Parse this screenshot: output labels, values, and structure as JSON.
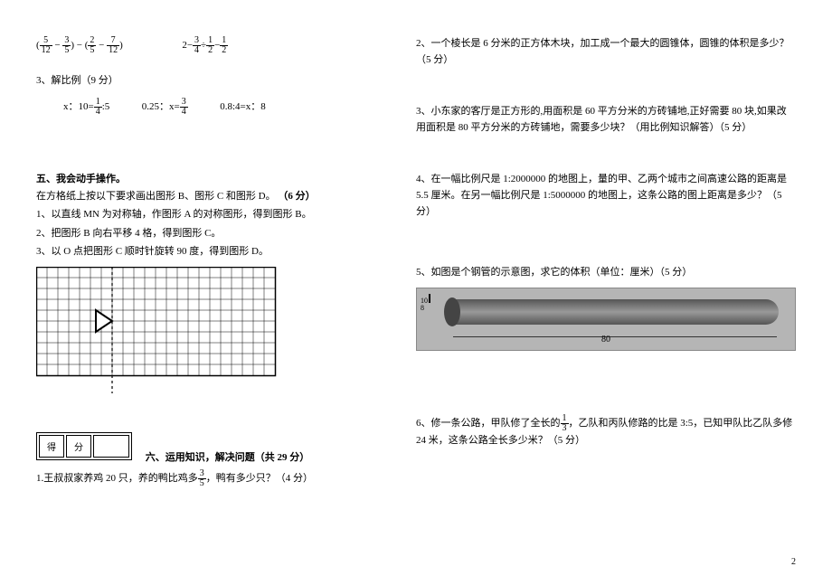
{
  "left": {
    "eq1a_f1_num": "5",
    "eq1a_f1_den": "12",
    "eq1a_f2_num": "3",
    "eq1a_f2_den": "5",
    "eq1a_f3_num": "2",
    "eq1a_f3_den": "5",
    "eq1a_f4_num": "7",
    "eq1a_f4_den": "12",
    "eq1b_prefix": "2−",
    "eq1b_f1_num": "3",
    "eq1b_f1_den": "4",
    "eq1b_mid": "÷",
    "eq1b_f2_num": "1",
    "eq1b_f2_den": "2",
    "eq1b_suf": "−",
    "eq1b_f3_num": "1",
    "eq1b_f3_den": "2",
    "sec3_title": "3、解比例（9 分）",
    "prop1_pre": "x：10=",
    "prop1_num": "1",
    "prop1_den": "4",
    "prop1_suf": ":5",
    "prop2_pre": "0.25：x=",
    "prop2_num": "3",
    "prop2_den": "4",
    "prop3": "0.8:4=x：8",
    "sec5_title": "五、我会动手操作。",
    "sec5_intro": "在方格纸上按以下要求画出图形 B、图形 C 和图形 D。",
    "sec5_pts": "（6 分）",
    "sec5_step1": "1、以直线 MN 为对称轴，作图形 A 的对称图形，得到图形 B。",
    "sec5_step2": "2、把图形 B 向右平移 4 格，得到图形 C。",
    "sec5_step3": "3、以 O 点把图形 C 顺时针旋转 90 度，得到图形 D。",
    "score_label1": "得",
    "score_label2": "分",
    "sec6_title": "六、运用知识，解决问题（共 29 分）",
    "q1_pre": "1.王叔叔家养鸡 20 只，养的鸭比鸡多",
    "q1_num": "3",
    "q1_den": "5",
    "q1_suf": "，鸭有多少只？（4 分）"
  },
  "right": {
    "q2": "2、一个棱长是 6 分米的正方体木块，加工成一个最大的圆锥体，圆锥的体积是多少？（5 分）",
    "q3": "3、小东家的客厅是正方形的,用面积是 60 平方分米的方砖铺地,正好需要 80 块,如果改用面积是 80 平方分米的方砖铺地，需要多少块？（用比例知识解答）（5 分）",
    "q4": "4、在一幅比例尺是 1:2000000 的地图上，量的甲、乙两个城市之间高速公路的距离是 5.5 厘米。在另一幅比例尺是 1:5000000 的地图上，这条公路的图上距离是多少？（5 分）",
    "q5": "5、如图是个钢管的示意图，求它的体积（单位：厘米）（5 分）",
    "pipe_d1": "10",
    "pipe_d2": "8",
    "pipe_len": "80",
    "q6_pre": "6、修一条公路，甲队修了全长的",
    "q6_num": "1",
    "q6_den": "3",
    "q6_mid": "，乙队和丙队修路的比是 3:5，已知甲队比乙队多修 24 米，这条公路全长多少米？（5 分）",
    "page_num": "2"
  },
  "grid": {
    "cols": 22,
    "rows": 10,
    "cell": 12,
    "axis_col": 7,
    "tri": "66,48 66,72 84,60"
  }
}
